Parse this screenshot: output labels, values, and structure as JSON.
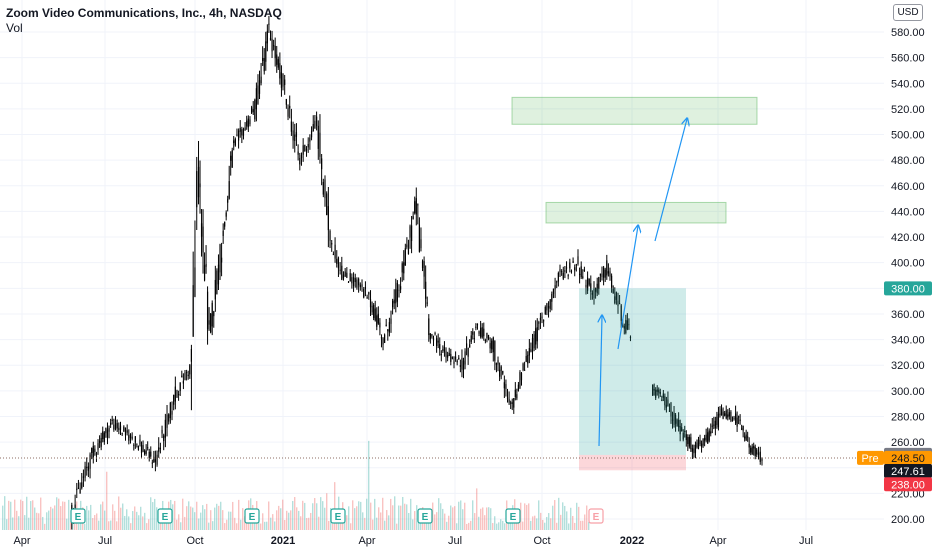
{
  "header": {
    "title": "Zoom Video Communications, Inc., 4h, NASDAQ",
    "volume_label": "Vol",
    "currency": "USD"
  },
  "colors": {
    "candle": "#000000",
    "grid": "#f0f3fa",
    "axis_text": "#131722",
    "target_box": "#4caf50",
    "target_fill": "#4caf50",
    "tp_zone": "#26a69a",
    "sl_zone": "#f23645",
    "arrow": "#2196f3",
    "vol_up": "#26a69a",
    "vol_down": "#ef5350",
    "price_line": "#8d6e63",
    "pre_badge": "#ff9800"
  },
  "chart_data": {
    "type": "candlestick",
    "title": "Zoom Video Communications, Inc., 4h, NASDAQ",
    "x_labels": [
      "Apr",
      "Jul",
      "Oct",
      "2021",
      "Apr",
      "Jul",
      "Oct",
      "2022",
      "Apr",
      "Jul"
    ],
    "y_ticks": [
      200,
      220,
      240,
      260,
      280,
      300,
      320,
      340,
      360,
      380,
      400,
      420,
      440,
      460,
      480,
      500,
      520,
      540,
      560,
      580
    ],
    "ylim": [
      196,
      598
    ],
    "price_path": [
      [
        2020.4,
        205
      ],
      [
        2020.46,
        250
      ],
      [
        2020.52,
        275
      ],
      [
        2020.58,
        262
      ],
      [
        2020.64,
        245
      ],
      [
        2020.7,
        300
      ],
      [
        2020.74,
        320
      ],
      [
        2020.76,
        470
      ],
      [
        2020.79,
        345
      ],
      [
        2020.83,
        420
      ],
      [
        2020.86,
        490
      ],
      [
        2020.92,
        520
      ],
      [
        2020.96,
        580
      ],
      [
        2021.0,
        540
      ],
      [
        2021.05,
        480
      ],
      [
        2021.1,
        510
      ],
      [
        2021.14,
        420
      ],
      [
        2021.18,
        390
      ],
      [
        2021.22,
        385
      ],
      [
        2021.26,
        370
      ],
      [
        2021.3,
        340
      ],
      [
        2021.35,
        390
      ],
      [
        2021.39,
        445
      ],
      [
        2021.43,
        345
      ],
      [
        2021.47,
        330
      ],
      [
        2021.52,
        320
      ],
      [
        2021.56,
        350
      ],
      [
        2021.61,
        335
      ],
      [
        2021.66,
        285
      ],
      [
        2021.7,
        320
      ],
      [
        2021.75,
        355
      ],
      [
        2021.8,
        390
      ],
      [
        2021.85,
        400
      ],
      [
        2021.89,
        375
      ],
      [
        2021.93,
        395
      ],
      [
        2021.97,
        360
      ],
      [
        2022.0,
        340
      ]
    ],
    "price_path_2": [
      [
        2022.06,
        300
      ],
      [
        2022.1,
        292
      ],
      [
        2022.14,
        270
      ],
      [
        2022.18,
        255
      ],
      [
        2022.22,
        262
      ],
      [
        2022.26,
        282
      ],
      [
        2022.3,
        280
      ],
      [
        2022.33,
        262
      ],
      [
        2022.36,
        250
      ],
      [
        2022.38,
        247.61
      ]
    ],
    "last_price": 247.61,
    "annotations": {
      "target_zones": [
        {
          "from": 508,
          "to": 529
        },
        {
          "from": 431,
          "to": 447
        }
      ],
      "position": {
        "entry": 250.0,
        "target": 380.0,
        "stop": 238.0
      },
      "pre_market": 248.5
    },
    "price_labels": [
      {
        "name": "target",
        "value": "380.00"
      },
      {
        "name": "entry",
        "value": "250.00"
      },
      {
        "name": "pre-label",
        "value": "Pre"
      },
      {
        "name": "pre-price",
        "value": "248.50"
      },
      {
        "name": "last",
        "value": "247.61"
      },
      {
        "name": "stop",
        "value": "238.00"
      }
    ],
    "earnings_marker": "E"
  }
}
